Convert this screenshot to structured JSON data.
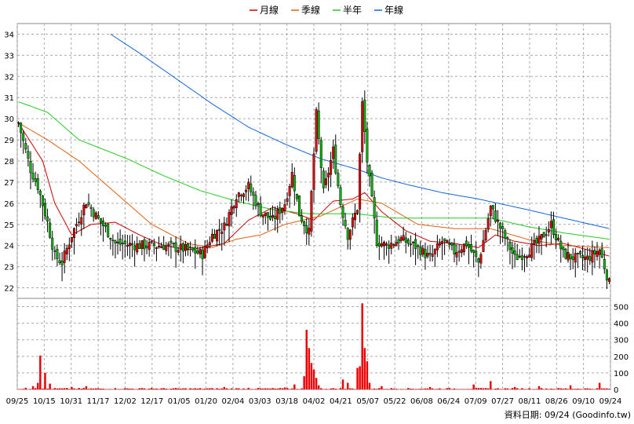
{
  "chart_data": {
    "type": "candlestick",
    "legend": [
      {
        "name": "月線",
        "color": "#cc0000"
      },
      {
        "name": "季線",
        "color": "#e06010"
      },
      {
        "name": "半年",
        "color": "#22cc22"
      },
      {
        "name": "年線",
        "color": "#1166dd"
      }
    ],
    "legend_position": "top-center",
    "grid": true,
    "price_axis": {
      "min": 21.5,
      "max": 34.5,
      "ticks": [
        22,
        23,
        24,
        25,
        26,
        27,
        28,
        29,
        30,
        31,
        32,
        33,
        34
      ],
      "position": "left"
    },
    "volume_axis": {
      "min": 0,
      "max": 550,
      "ticks": [
        0,
        100,
        200,
        300,
        400,
        500
      ],
      "position": "right"
    },
    "x_ticks": [
      "09/25",
      "10/15",
      "10/31",
      "11/17",
      "12/02",
      "12/17",
      "01/05",
      "01/20",
      "02/04",
      "03/03",
      "03/18",
      "04/02",
      "04/21",
      "05/07",
      "05/22",
      "06/08",
      "06/24",
      "07/09",
      "07/27",
      "08/11",
      "08/26",
      "09/10",
      "09/24"
    ],
    "num_days": 245,
    "price_anchors": [
      [
        0,
        29.8
      ],
      [
        5,
        27.6
      ],
      [
        8,
        26.8
      ],
      [
        12,
        25.1
      ],
      [
        15,
        23.5
      ],
      [
        18,
        23.2
      ],
      [
        22,
        24.5
      ],
      [
        28,
        26.1
      ],
      [
        32,
        25.4
      ],
      [
        36,
        24.8
      ],
      [
        40,
        24.1
      ],
      [
        50,
        24.0
      ],
      [
        60,
        24.0
      ],
      [
        70,
        23.8
      ],
      [
        76,
        23.6
      ],
      [
        80,
        24.5
      ],
      [
        85,
        24.9
      ],
      [
        90,
        26.4
      ],
      [
        95,
        26.8
      ],
      [
        100,
        25.6
      ],
      [
        105,
        25.2
      ],
      [
        110,
        26.0
      ],
      [
        113,
        27.4
      ],
      [
        116,
        25.5
      ],
      [
        120,
        24.6
      ],
      [
        123,
        30.2
      ],
      [
        126,
        26.5
      ],
      [
        130,
        28.5
      ],
      [
        133,
        26.0
      ],
      [
        136,
        24.5
      ],
      [
        140,
        25.8
      ],
      [
        142,
        30.7
      ],
      [
        144,
        28.0
      ],
      [
        148,
        24.2
      ],
      [
        152,
        24.0
      ],
      [
        158,
        24.3
      ],
      [
        165,
        23.9
      ],
      [
        170,
        23.4
      ],
      [
        175,
        24.2
      ],
      [
        180,
        23.7
      ],
      [
        185,
        24.1
      ],
      [
        190,
        23.2
      ],
      [
        195,
        25.8
      ],
      [
        200,
        24.6
      ],
      [
        205,
        23.4
      ],
      [
        210,
        23.7
      ],
      [
        215,
        24.2
      ],
      [
        220,
        25.0
      ],
      [
        225,
        23.6
      ],
      [
        230,
        23.4
      ],
      [
        235,
        23.4
      ],
      [
        240,
        23.8
      ],
      [
        244,
        22.2
      ]
    ],
    "ma_month": [
      [
        0,
        29.8
      ],
      [
        10,
        28.0
      ],
      [
        15,
        26.0
      ],
      [
        22,
        24.5
      ],
      [
        30,
        25.0
      ],
      [
        40,
        25.1
      ],
      [
        50,
        24.5
      ],
      [
        60,
        24.0
      ],
      [
        70,
        23.8
      ],
      [
        76,
        23.9
      ],
      [
        85,
        24.1
      ],
      [
        95,
        25.2
      ],
      [
        105,
        25.8
      ],
      [
        115,
        25.5
      ],
      [
        122,
        25.2
      ],
      [
        130,
        26.1
      ],
      [
        138,
        26.2
      ],
      [
        143,
        26.5
      ],
      [
        150,
        25.6
      ],
      [
        160,
        24.7
      ],
      [
        170,
        24.2
      ],
      [
        180,
        24.1
      ],
      [
        190,
        23.9
      ],
      [
        197,
        24.5
      ],
      [
        205,
        24.2
      ],
      [
        215,
        24.0
      ],
      [
        225,
        24.1
      ],
      [
        235,
        23.8
      ],
      [
        244,
        23.5
      ]
    ],
    "ma_quarter": [
      [
        0,
        29.8
      ],
      [
        12,
        29.0
      ],
      [
        25,
        28.0
      ],
      [
        40,
        26.5
      ],
      [
        55,
        25.0
      ],
      [
        70,
        24.1
      ],
      [
        80,
        23.9
      ],
      [
        90,
        24.3
      ],
      [
        100,
        24.5
      ],
      [
        110,
        25.0
      ],
      [
        125,
        25.4
      ],
      [
        140,
        26.2
      ],
      [
        150,
        26.0
      ],
      [
        165,
        25.0
      ],
      [
        180,
        24.8
      ],
      [
        195,
        24.8
      ],
      [
        210,
        24.3
      ],
      [
        225,
        24.0
      ],
      [
        244,
        23.9
      ]
    ],
    "ma_half": [
      [
        0,
        30.8
      ],
      [
        12,
        30.3
      ],
      [
        25,
        29.0
      ],
      [
        45,
        28.1
      ],
      [
        60,
        27.3
      ],
      [
        75,
        26.6
      ],
      [
        90,
        26.1
      ],
      [
        105,
        25.7
      ],
      [
        120,
        25.5
      ],
      [
        140,
        25.5
      ],
      [
        155,
        25.3
      ],
      [
        170,
        25.3
      ],
      [
        195,
        25.3
      ],
      [
        210,
        24.9
      ],
      [
        225,
        24.6
      ],
      [
        244,
        24.3
      ]
    ],
    "ma_year": [
      [
        38,
        34.0
      ],
      [
        50,
        33.1
      ],
      [
        65,
        31.9
      ],
      [
        80,
        30.7
      ],
      [
        95,
        29.6
      ],
      [
        110,
        28.8
      ],
      [
        125,
        28.1
      ],
      [
        140,
        27.6
      ],
      [
        150,
        27.2
      ],
      [
        160,
        26.9
      ],
      [
        175,
        26.5
      ],
      [
        190,
        26.2
      ],
      [
        210,
        25.7
      ],
      [
        225,
        25.3
      ],
      [
        244,
        24.8
      ]
    ],
    "volume_bursts": [
      [
        3,
        10
      ],
      [
        6,
        20
      ],
      [
        8,
        40
      ],
      [
        9,
        205
      ],
      [
        11,
        100
      ],
      [
        13,
        35
      ],
      [
        22,
        15
      ],
      [
        28,
        20
      ],
      [
        55,
        10
      ],
      [
        85,
        15
      ],
      [
        95,
        10
      ],
      [
        110,
        12
      ],
      [
        114,
        30
      ],
      [
        118,
        80
      ],
      [
        119,
        360
      ],
      [
        120,
        250
      ],
      [
        121,
        160
      ],
      [
        122,
        120
      ],
      [
        123,
        70
      ],
      [
        124,
        25
      ],
      [
        134,
        60
      ],
      [
        136,
        40
      ],
      [
        140,
        130
      ],
      [
        141,
        140
      ],
      [
        142,
        520
      ],
      [
        143,
        250
      ],
      [
        144,
        170
      ],
      [
        145,
        40
      ],
      [
        150,
        20
      ],
      [
        170,
        15
      ],
      [
        188,
        30
      ],
      [
        195,
        50
      ],
      [
        205,
        15
      ],
      [
        215,
        20
      ],
      [
        228,
        25
      ],
      [
        240,
        40
      ]
    ]
  },
  "footer": {
    "label": "資料日期: 09/24  (Goodinfo.tw)"
  }
}
